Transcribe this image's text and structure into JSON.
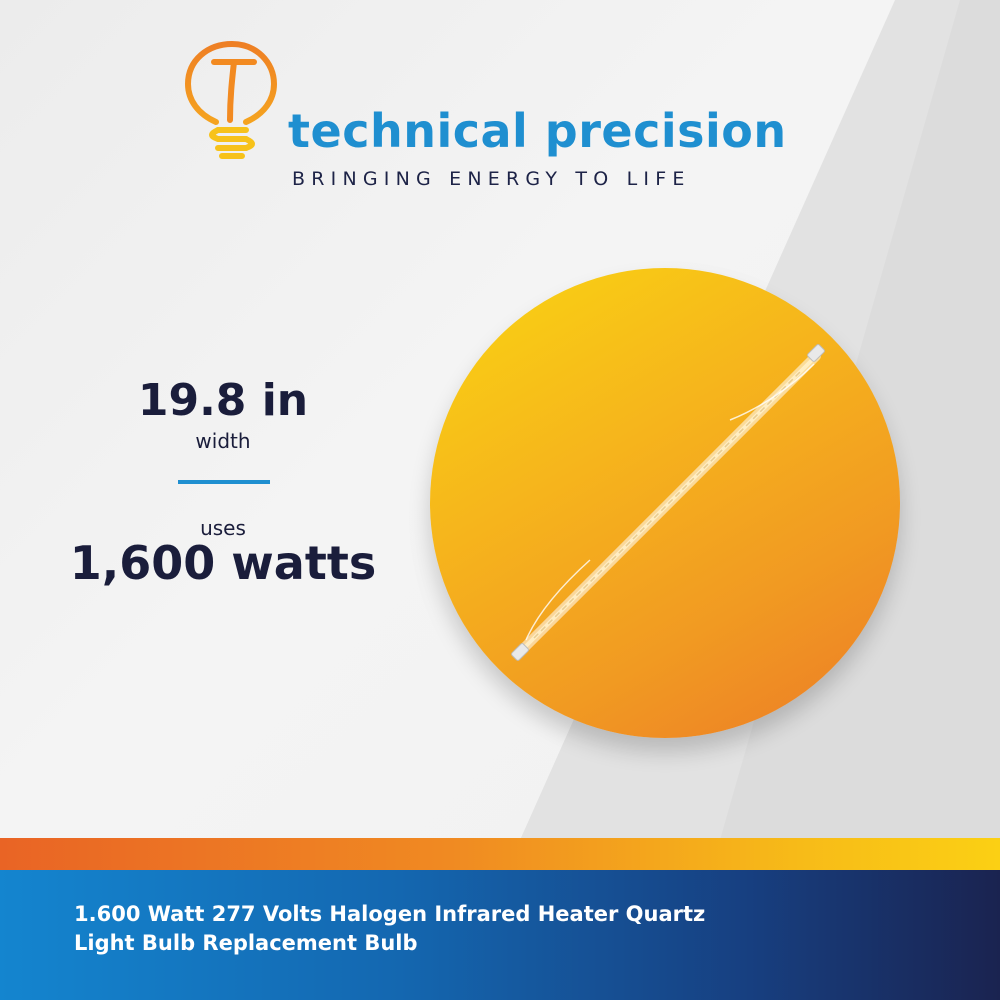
{
  "brand": {
    "name": "technical precision",
    "tagline": "BRINGING ENERGY TO LIFE",
    "logo_letter": "T",
    "logo_icon": "light-bulb-icon"
  },
  "specs": {
    "width_value": "19.8 in",
    "width_label": "width",
    "power_label": "uses",
    "power_value": "1,600 watts"
  },
  "product": {
    "image": "quartz-heater-bulb"
  },
  "banner": {
    "title": "1.600 Watt  277 Volts Halogen Infrared Heater Quartz\nLight Bulb Replacement Bulb"
  },
  "colors": {
    "brand_blue": "#1f8fd0",
    "navy": "#1a1d3b",
    "orange": "#ec7a27",
    "yellow": "#f9d512"
  }
}
